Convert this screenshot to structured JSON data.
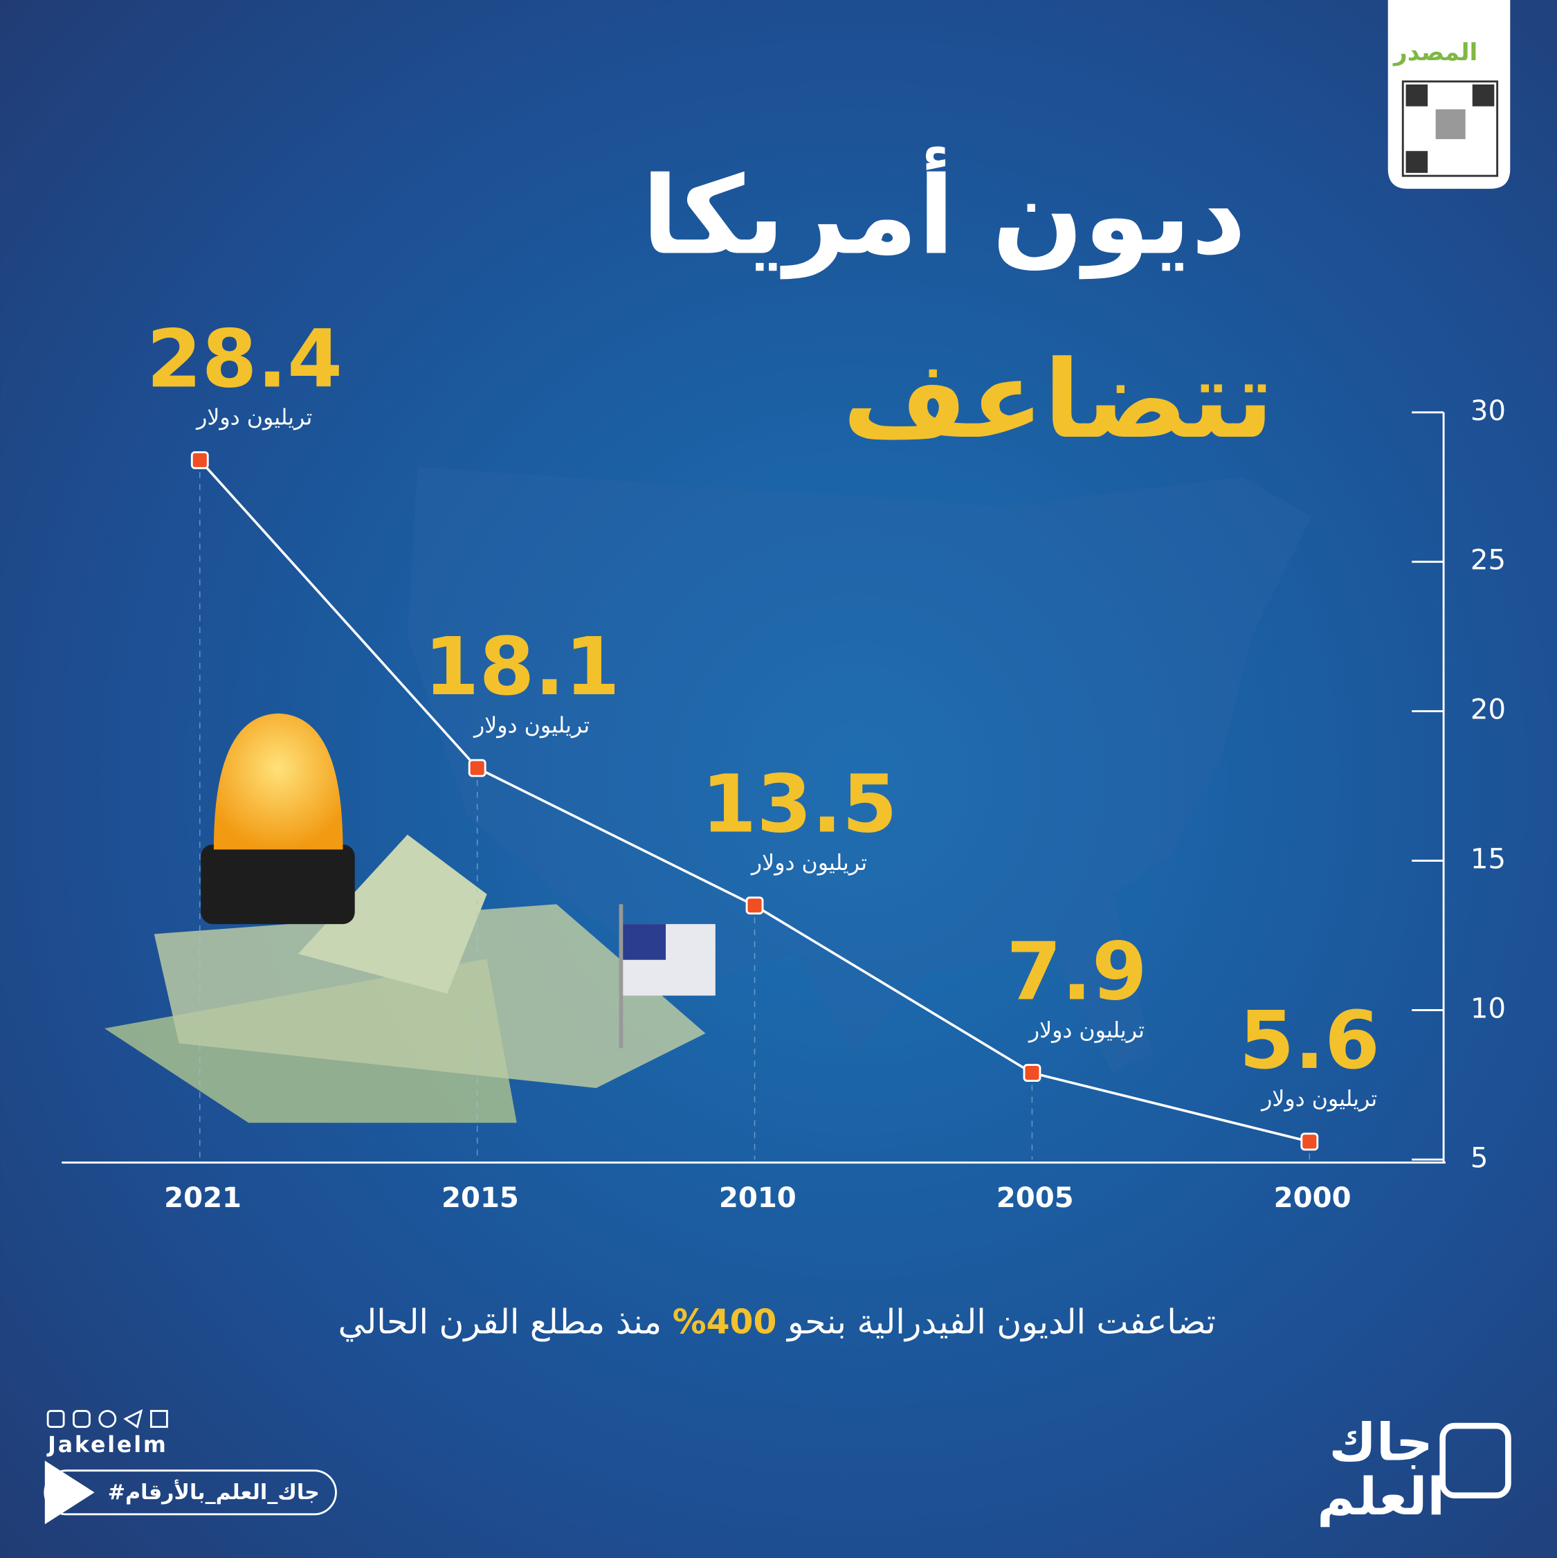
{
  "chart_data": {
    "type": "line",
    "title": "ديون أمريكا",
    "subtitle": "تتضاعف",
    "categories": [
      "2021",
      "2015",
      "2010",
      "2005",
      "2000"
    ],
    "values": [
      28.4,
      18.1,
      13.5,
      7.9,
      5.6
    ],
    "unit_label": "تريليون دولار",
    "ylim": [
      5,
      30
    ],
    "yticks": [
      5,
      10,
      15,
      20,
      25,
      30
    ],
    "y_axis_side": "right",
    "line_color": "#ffffff",
    "marker_color": "#f04e23",
    "label_color": "#f3c12c",
    "note": {
      "before": "تضاعفت الديون الفيدرالية بنحو",
      "highlight": "400%",
      "after": "منذ مطلع القرن الحالي"
    }
  },
  "source": {
    "label": "المصدر"
  },
  "brand": {
    "handle": "Jakelelm",
    "hashtag": "#جاك_العلم_بالأرقام",
    "logo_lines": [
      "جاك",
      "العلم"
    ]
  }
}
